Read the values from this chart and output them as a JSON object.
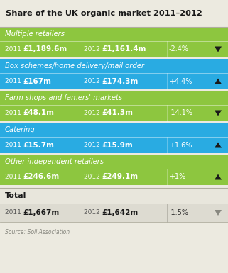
{
  "title": "Share of the UK organic market 2011–2012",
  "green": "#8dc63f",
  "blue": "#29abe2",
  "bg_color": "#eceae0",
  "total_bg": "#e8e6dc",
  "total_data_bg": "#dddbd1",
  "rows": [
    {
      "category": "Multiple retailers",
      "val2011": "£1,189.6m",
      "val2012": "£1,161.4m",
      "change": "-2.4%",
      "arrow": "down",
      "color_scheme": "green"
    },
    {
      "category": "Box schemes/home delivery/mail order",
      "val2011": "£167m",
      "val2012": "£174.3m",
      "change": "+4.4%",
      "arrow": "up",
      "color_scheme": "blue"
    },
    {
      "category": "Farm shops and famers' markets",
      "val2011": "£48.1m",
      "val2012": "£41.3m",
      "change": "-14.1%",
      "arrow": "down",
      "color_scheme": "green"
    },
    {
      "category": "Catering",
      "val2011": "£15.7m",
      "val2012": "£15.9m",
      "change": "+1.6%",
      "arrow": "up",
      "color_scheme": "blue"
    },
    {
      "category": "Other independent retailers",
      "val2011": "£246.6m",
      "val2012": "£249.1m",
      "change": "+1%",
      "arrow": "up",
      "color_scheme": "green"
    }
  ],
  "total": {
    "label": "Total",
    "val2011": "£1,667m",
    "val2012": "£1,642m",
    "change": "-1.5%",
    "arrow": "down"
  },
  "source": "Source: Soil Association"
}
